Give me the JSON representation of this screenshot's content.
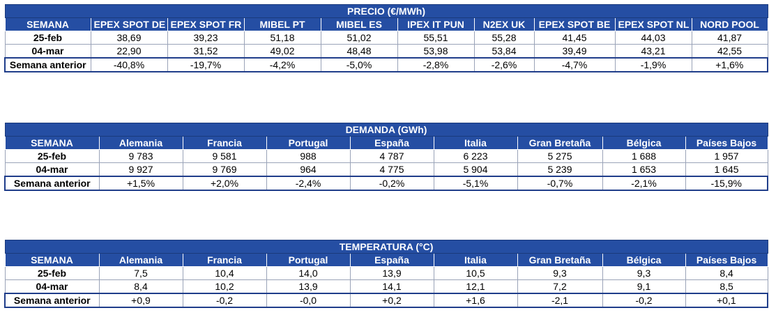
{
  "precio": {
    "title": "PRECIO (€/MWh)",
    "headers": [
      "SEMANA",
      "EPEX SPOT DE",
      "EPEX SPOT FR",
      "MIBEL PT",
      "MIBEL ES",
      "IPEX IT PUN",
      "N2EX UK",
      "EPEX SPOT BE",
      "EPEX SPOT NL",
      "NORD POOL"
    ],
    "rows": [
      {
        "label": "25-feb",
        "values": [
          "38,69",
          "39,23",
          "51,18",
          "51,02",
          "55,51",
          "55,28",
          "41,45",
          "44,03",
          "41,87"
        ]
      },
      {
        "label": "04-mar",
        "values": [
          "22,90",
          "31,52",
          "49,02",
          "48,48",
          "53,98",
          "53,84",
          "39,49",
          "43,21",
          "42,55"
        ]
      },
      {
        "label": "Semana anterior",
        "values": [
          "-40,8%",
          "-19,7%",
          "-4,2%",
          "-5,0%",
          "-2,8%",
          "-2,6%",
          "-4,7%",
          "-1,9%",
          "+1,6%"
        ]
      }
    ]
  },
  "demanda": {
    "title": "DEMANDA (GWh)",
    "headers": [
      "SEMANA",
      "Alemania",
      "Francia",
      "Portugal",
      "España",
      "Italia",
      "Gran Bretaña",
      "Bélgica",
      "Países Bajos"
    ],
    "rows": [
      {
        "label": "25-feb",
        "values": [
          "9 783",
          "9 581",
          "988",
          "4 787",
          "6 223",
          "5 275",
          "1 688",
          "1 957"
        ]
      },
      {
        "label": "04-mar",
        "values": [
          "9 927",
          "9 769",
          "964",
          "4 775",
          "5 904",
          "5 239",
          "1 653",
          "1 645"
        ]
      },
      {
        "label": "Semana anterior",
        "values": [
          "+1,5%",
          "+2,0%",
          "-2,4%",
          "-0,2%",
          "-5,1%",
          "-0,7%",
          "-2,1%",
          "-15,9%"
        ]
      }
    ]
  },
  "temperatura": {
    "title": "TEMPERATURA (°C)",
    "headers": [
      "SEMANA",
      "Alemania",
      "Francia",
      "Portugal",
      "España",
      "Italia",
      "Gran Bretaña",
      "Bélgica",
      "Países Bajos"
    ],
    "rows": [
      {
        "label": "25-feb",
        "values": [
          "7,5",
          "10,4",
          "14,0",
          "13,9",
          "10,5",
          "9,3",
          "9,3",
          "8,4"
        ]
      },
      {
        "label": "04-mar",
        "values": [
          "8,4",
          "10,2",
          "13,9",
          "14,1",
          "12,1",
          "7,2",
          "9,1",
          "8,5"
        ]
      },
      {
        "label": "Semana anterior",
        "values": [
          "+0,9",
          "-0,2",
          "-0,0",
          "+0,2",
          "+1,6",
          "-2,1",
          "-0,2",
          "+0,1"
        ]
      }
    ]
  },
  "colors": {
    "header_bg": "#254ea3",
    "header_text": "#ffffff"
  }
}
